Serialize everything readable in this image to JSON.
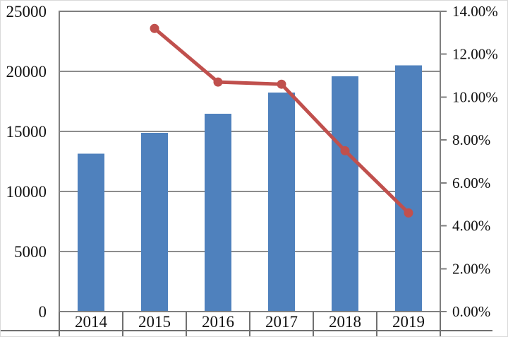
{
  "chart_data": {
    "type": "bar",
    "subtype": "combo-bar-line-dual-axis",
    "title": "",
    "categories": [
      "2014",
      "2015",
      "2016",
      "2017",
      "2018",
      "2019"
    ],
    "series": [
      {
        "name": "value-bars",
        "type": "bar",
        "axis": "left",
        "color": "#4F81BD",
        "values": [
          13150,
          14890,
          16480,
          18230,
          19590,
          20490
        ]
      },
      {
        "name": "growth-rate-line",
        "type": "line",
        "axis": "right",
        "color": "#C0504D",
        "values": [
          null,
          13.2,
          10.7,
          10.6,
          7.5,
          4.6
        ]
      }
    ],
    "left_axis": {
      "min": 0,
      "max": 25000,
      "step": 5000,
      "tick_labels": [
        "25000",
        "20000",
        "15000",
        "10000",
        "5000",
        "0"
      ]
    },
    "right_axis": {
      "min": 0,
      "max": 14,
      "step": 2,
      "tick_labels": [
        "14.00%",
        "12.00%",
        "10.00%",
        "8.00%",
        "6.00%",
        "4.00%",
        "2.00%",
        "0.00%"
      ]
    },
    "grid": true,
    "legend": "none",
    "colors": {
      "bar": "#4F81BD",
      "line": "#C0504D",
      "gridline": "#8C8C8C",
      "border": "#7F7F7F",
      "table_line": "#707070",
      "text": "#111111",
      "background": "#FFFFFF"
    }
  }
}
